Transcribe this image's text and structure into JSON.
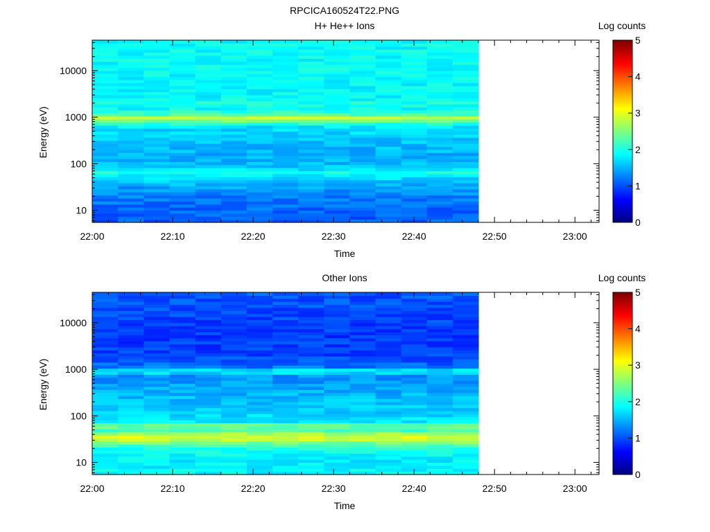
{
  "figure_title": "RPCICA160524T22.PNG",
  "colormap": [
    "#00007f",
    "#0000ff",
    "#007fff",
    "#00ffff",
    "#7fff7f",
    "#ffff00",
    "#ff7f00",
    "#ff0000",
    "#7f0000"
  ],
  "chart_data": [
    {
      "type": "heatmap",
      "title": "H+ He++ Ions",
      "xlabel": "Time",
      "ylabel": "Energy (eV)",
      "y_scale": "log",
      "ylim": [
        5.5,
        45000
      ],
      "xlim": [
        "22:00",
        "23:03"
      ],
      "x_ticks": [
        "22:00",
        "22:10",
        "22:20",
        "22:30",
        "22:40",
        "22:50",
        "23:00"
      ],
      "y_ticks": [
        "10",
        "100",
        "1000",
        "10000"
      ],
      "grid": false,
      "data_end_time": "22:48",
      "time_bins": 15,
      "colorbar": {
        "label": "Log counts",
        "range": [
          0,
          5
        ],
        "ticks": [
          "0",
          "1",
          "2",
          "3",
          "4",
          "5"
        ]
      },
      "profile": [
        {
          "e": 7,
          "v": 1.1
        },
        {
          "e": 12,
          "v": 1.15
        },
        {
          "e": 20,
          "v": 1.25
        },
        {
          "e": 30,
          "v": 1.4
        },
        {
          "e": 45,
          "v": 1.65
        },
        {
          "e": 55,
          "v": 1.8
        },
        {
          "e": 62,
          "v": 2.05
        },
        {
          "e": 75,
          "v": 1.7
        },
        {
          "e": 100,
          "v": 1.55
        },
        {
          "e": 150,
          "v": 1.5
        },
        {
          "e": 250,
          "v": 1.55
        },
        {
          "e": 400,
          "v": 1.65
        },
        {
          "e": 600,
          "v": 1.7
        },
        {
          "e": 800,
          "v": 2.2
        },
        {
          "e": 950,
          "v": 2.95
        },
        {
          "e": 1150,
          "v": 2.2
        },
        {
          "e": 1600,
          "v": 1.85
        },
        {
          "e": 2000,
          "v": 2.0
        },
        {
          "e": 2500,
          "v": 1.85
        },
        {
          "e": 5000,
          "v": 1.85
        },
        {
          "e": 10000,
          "v": 1.9
        },
        {
          "e": 20000,
          "v": 1.9
        },
        {
          "e": 45000,
          "v": 1.9
        }
      ]
    },
    {
      "type": "heatmap",
      "title": "Other Ions",
      "xlabel": "Time",
      "ylabel": "Energy (eV)",
      "y_scale": "log",
      "ylim": [
        5.5,
        45000
      ],
      "xlim": [
        "22:00",
        "23:03"
      ],
      "x_ticks": [
        "22:00",
        "22:10",
        "22:20",
        "22:30",
        "22:40",
        "22:50",
        "23:00"
      ],
      "y_ticks": [
        "10",
        "100",
        "1000",
        "10000"
      ],
      "grid": false,
      "data_end_time": "22:48",
      "time_bins": 15,
      "colorbar": {
        "label": "Log counts",
        "range": [
          0,
          5
        ],
        "ticks": [
          "0",
          "1",
          "2",
          "3",
          "4",
          "5"
        ]
      },
      "profile": [
        {
          "e": 7,
          "v": 1.85
        },
        {
          "e": 12,
          "v": 1.8
        },
        {
          "e": 20,
          "v": 2.0
        },
        {
          "e": 27,
          "v": 2.5
        },
        {
          "e": 33,
          "v": 2.95
        },
        {
          "e": 40,
          "v": 2.8
        },
        {
          "e": 50,
          "v": 2.1
        },
        {
          "e": 62,
          "v": 2.55
        },
        {
          "e": 75,
          "v": 1.8
        },
        {
          "e": 120,
          "v": 1.65
        },
        {
          "e": 250,
          "v": 1.55
        },
        {
          "e": 500,
          "v": 1.4
        },
        {
          "e": 750,
          "v": 1.35
        },
        {
          "e": 920,
          "v": 1.95
        },
        {
          "e": 1150,
          "v": 1.15
        },
        {
          "e": 2000,
          "v": 0.95
        },
        {
          "e": 5000,
          "v": 0.9
        },
        {
          "e": 10000,
          "v": 0.95
        },
        {
          "e": 20000,
          "v": 1.0
        },
        {
          "e": 45000,
          "v": 1.05
        }
      ]
    }
  ]
}
